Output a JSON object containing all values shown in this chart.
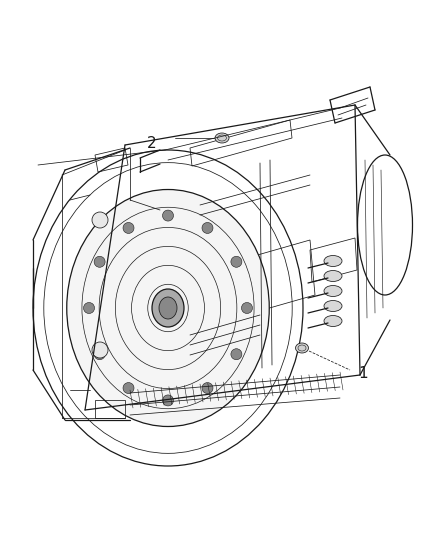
{
  "background_color": "#ffffff",
  "figsize": [
    4.38,
    5.33
  ],
  "dpi": 100,
  "label_1": "1",
  "label_2": "2",
  "font_size": 11,
  "line_color": "#1a1a1a",
  "text_color": "#1a1a1a",
  "callout_color": "#444444",
  "lw_main": 0.9,
  "lw_detail": 0.55,
  "lw_thin": 0.4
}
